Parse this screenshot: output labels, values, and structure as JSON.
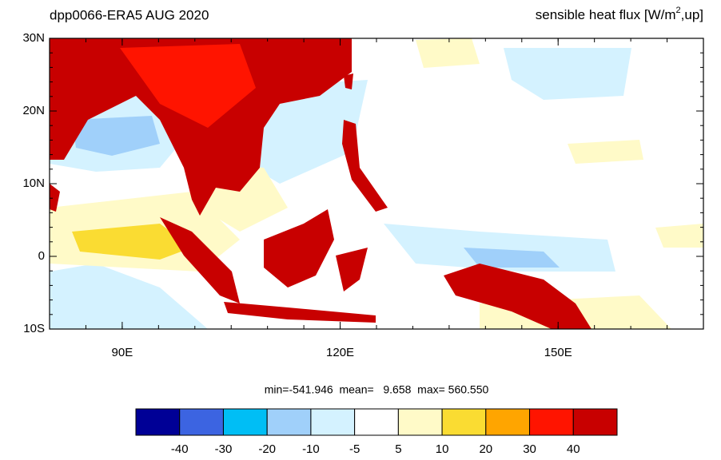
{
  "header": {
    "left": "dpp0066-ERA5  AUG 2020",
    "right_main": "sensible heat flux [W/m",
    "right_sup": "2",
    "right_end": ",up]"
  },
  "map": {
    "lat_labels": [
      "30N",
      "20N",
      "10N",
      "0",
      "10S"
    ],
    "lon_labels": [
      "90E",
      "120E",
      "150E"
    ]
  },
  "stats": "min=-541.946  mean=   9.658  max= 560.550",
  "colorbar": {
    "colors": [
      "#000096",
      "#3c64e1",
      "#00bef5",
      "#a0d0fa",
      "#d4f2ff",
      "#ffffff",
      "#fffac8",
      "#fadc32",
      "#ffa500",
      "#ff1400",
      "#c80000"
    ],
    "labels": [
      "-40",
      "-30",
      "-20",
      "-10",
      "-5",
      "5",
      "10",
      "20",
      "30",
      "40"
    ]
  }
}
